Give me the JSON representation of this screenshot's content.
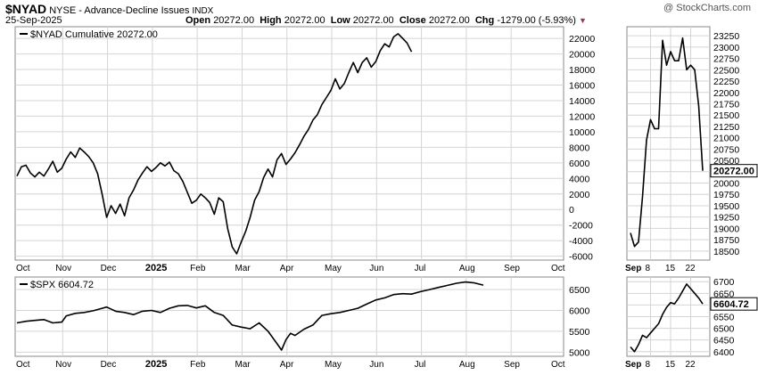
{
  "header": {
    "symbol": "$NYAD",
    "description": "NYSE - Advance-Decline Issues",
    "exchange": "INDX",
    "date": "25-Sep-2025",
    "open_label": "Open",
    "open": "20272.00",
    "high_label": "High",
    "high": "20272.00",
    "low_label": "Low",
    "low": "20272.00",
    "close_label": "Close",
    "close": "20272.00",
    "chg_label": "Chg",
    "chg": "-1279.00 (-5.93%)",
    "watermark": "@ StockCharts.com",
    "colors": {
      "down_marker": "#993366",
      "line": "#000000",
      "grid": "#d4d4d4"
    }
  },
  "chart_data": [
    {
      "type": "line",
      "name": "main-nyad",
      "legend": "$NYAD Cumulative 20272.00",
      "x_labels": [
        "Oct",
        "Nov",
        "Dec",
        "2025",
        "Feb",
        "Mar",
        "Apr",
        "May",
        "Jun",
        "Jul",
        "Aug",
        "Sep",
        "Oct"
      ],
      "ylim": [
        -6500,
        23500
      ],
      "y_ticks": [
        22000,
        20000,
        18000,
        16000,
        14000,
        12000,
        10000,
        8000,
        6000,
        4000,
        2000,
        0,
        -2000,
        -4000,
        -6000
      ],
      "y_tick_labels": [
        "22000",
        "20000",
        "18000",
        "16000",
        "14000",
        "12000",
        "10000",
        "8000",
        "6000",
        "4000",
        "2000",
        "0",
        "-2000",
        "-4000",
        "-6000"
      ],
      "x_month_index": [
        0,
        1,
        2,
        3,
        4,
        5,
        6,
        7,
        8,
        9,
        10,
        11
      ],
      "series": [
        {
          "values": [
            [
              0,
              4300
            ],
            [
              0.1,
              5500
            ],
            [
              0.2,
              5700
            ],
            [
              0.3,
              4700
            ],
            [
              0.4,
              4200
            ],
            [
              0.5,
              4800
            ],
            [
              0.6,
              4300
            ],
            [
              0.7,
              5200
            ],
            [
              0.8,
              6200
            ],
            [
              0.9,
              4800
            ],
            [
              1,
              5300
            ],
            [
              1.1,
              6500
            ],
            [
              1.2,
              7400
            ],
            [
              1.3,
              6700
            ],
            [
              1.4,
              7900
            ],
            [
              1.5,
              7400
            ],
            [
              1.6,
              6800
            ],
            [
              1.7,
              6000
            ],
            [
              1.8,
              4600
            ],
            [
              1.9,
              2000
            ],
            [
              2,
              -1000
            ],
            [
              2.1,
              500
            ],
            [
              2.2,
              -500
            ],
            [
              2.3,
              700
            ],
            [
              2.4,
              -800
            ],
            [
              2.5,
              1500
            ],
            [
              2.6,
              2500
            ],
            [
              2.7,
              3800
            ],
            [
              2.8,
              4700
            ],
            [
              2.9,
              5500
            ],
            [
              3,
              4900
            ],
            [
              3.1,
              5400
            ],
            [
              3.2,
              6000
            ],
            [
              3.3,
              5600
            ],
            [
              3.4,
              6100
            ],
            [
              3.5,
              5000
            ],
            [
              3.6,
              4600
            ],
            [
              3.7,
              3600
            ],
            [
              3.8,
              2200
            ],
            [
              3.9,
              800
            ],
            [
              4,
              1200
            ],
            [
              4.1,
              2000
            ],
            [
              4.2,
              1500
            ],
            [
              4.3,
              900
            ],
            [
              4.4,
              -600
            ],
            [
              4.5,
              1500
            ],
            [
              4.6,
              1000
            ],
            [
              4.7,
              -2500
            ],
            [
              4.8,
              -4800
            ],
            [
              4.9,
              -5700
            ],
            [
              5,
              -4200
            ],
            [
              5.1,
              -2800
            ],
            [
              5.2,
              -1000
            ],
            [
              5.3,
              1200
            ],
            [
              5.4,
              2300
            ],
            [
              5.5,
              4100
            ],
            [
              5.6,
              5200
            ],
            [
              5.7,
              4200
            ],
            [
              5.8,
              6400
            ],
            [
              5.9,
              7200
            ],
            [
              6,
              5800
            ],
            [
              6.1,
              6500
            ],
            [
              6.2,
              7300
            ],
            [
              6.3,
              8300
            ],
            [
              6.4,
              9400
            ],
            [
              6.5,
              10300
            ],
            [
              6.6,
              11500
            ],
            [
              6.7,
              12200
            ],
            [
              6.8,
              13500
            ],
            [
              6.9,
              14400
            ],
            [
              7,
              15300
            ],
            [
              7.1,
              16800
            ],
            [
              7.2,
              15500
            ],
            [
              7.3,
              16200
            ],
            [
              7.4,
              17600
            ],
            [
              7.5,
              18900
            ],
            [
              7.6,
              17600
            ],
            [
              7.7,
              18900
            ],
            [
              7.8,
              19500
            ],
            [
              7.9,
              18300
            ],
            [
              8,
              19000
            ],
            [
              8.1,
              20400
            ],
            [
              8.2,
              21300
            ],
            [
              8.3,
              20900
            ],
            [
              8.4,
              22200
            ],
            [
              8.5,
              22600
            ],
            [
              8.6,
              22000
            ],
            [
              8.7,
              21400
            ],
            [
              8.8,
              20272
            ]
          ]
        }
      ]
    },
    {
      "type": "line",
      "name": "main-nyad-zoom",
      "x_labels": [
        "Sep",
        "8",
        "15",
        "22"
      ],
      "ylim": [
        18300,
        23450
      ],
      "y_ticks": [
        23250,
        23000,
        22750,
        22500,
        22250,
        22000,
        21750,
        21500,
        21250,
        21000,
        20750,
        20500,
        20250,
        20000,
        19750,
        19500,
        19250,
        19000,
        18750,
        18500
      ],
      "y_tick_labels": [
        "23250",
        "23000",
        "22750",
        "22500",
        "22250",
        "22000",
        "21750",
        "21500",
        "21250",
        "21000",
        "20750",
        "20500",
        "",
        "20000",
        "19750",
        "19500",
        "19250",
        "19000",
        "18750",
        "18500"
      ],
      "last_value": "20272.00",
      "series": [
        {
          "values": [
            [
              0,
              18900
            ],
            [
              1,
              18600
            ],
            [
              2,
              18700
            ],
            [
              3,
              19700
            ],
            [
              4,
              20950
            ],
            [
              5,
              21400
            ],
            [
              6,
              21200
            ],
            [
              7,
              21200
            ],
            [
              8,
              23150
            ],
            [
              9,
              22600
            ],
            [
              10,
              22900
            ],
            [
              11,
              22700
            ],
            [
              12,
              22700
            ],
            [
              13,
              23200
            ],
            [
              14,
              22500
            ],
            [
              15,
              22600
            ],
            [
              16,
              22500
            ],
            [
              17,
              21700
            ],
            [
              18,
              20272
            ]
          ]
        }
      ]
    },
    {
      "type": "line",
      "name": "lower-spx",
      "legend": "$SPX 6604.72",
      "x_labels": [
        "Oct",
        "Nov",
        "Dec",
        "2025",
        "Feb",
        "Mar",
        "Apr",
        "May",
        "Jun",
        "Jul",
        "Aug",
        "Sep",
        "Oct"
      ],
      "ylim": [
        4900,
        6800
      ],
      "y_ticks": [
        6500,
        6000,
        5500,
        5000
      ],
      "y_tick_labels": [
        "6500",
        "6000",
        "5500",
        "5000"
      ],
      "series": [
        {
          "values": [
            [
              0,
              5700
            ],
            [
              0.2,
              5740
            ],
            [
              0.4,
              5760
            ],
            [
              0.6,
              5780
            ],
            [
              0.8,
              5700
            ],
            [
              1,
              5720
            ],
            [
              1.1,
              5870
            ],
            [
              1.3,
              5930
            ],
            [
              1.5,
              5950
            ],
            [
              1.7,
              5990
            ],
            [
              1.9,
              6050
            ],
            [
              2,
              6080
            ],
            [
              2.2,
              5980
            ],
            [
              2.4,
              5950
            ],
            [
              2.6,
              5900
            ],
            [
              2.8,
              5980
            ],
            [
              3,
              6000
            ],
            [
              3.2,
              5950
            ],
            [
              3.4,
              6050
            ],
            [
              3.6,
              6110
            ],
            [
              3.8,
              6120
            ],
            [
              4,
              6060
            ],
            [
              4.2,
              6110
            ],
            [
              4.4,
              5950
            ],
            [
              4.6,
              5880
            ],
            [
              4.8,
              5650
            ],
            [
              5,
              5600
            ],
            [
              5.2,
              5560
            ],
            [
              5.4,
              5700
            ],
            [
              5.6,
              5500
            ],
            [
              5.8,
              5200
            ],
            [
              5.9,
              5050
            ],
            [
              6,
              5300
            ],
            [
              6.1,
              5450
            ],
            [
              6.2,
              5400
            ],
            [
              6.4,
              5550
            ],
            [
              6.6,
              5650
            ],
            [
              6.8,
              5880
            ],
            [
              7,
              5920
            ],
            [
              7.2,
              5950
            ],
            [
              7.4,
              6000
            ],
            [
              7.6,
              6050
            ],
            [
              7.8,
              6150
            ],
            [
              8,
              6250
            ],
            [
              8.2,
              6300
            ],
            [
              8.4,
              6380
            ],
            [
              8.6,
              6400
            ],
            [
              8.8,
              6390
            ],
            [
              9,
              6450
            ],
            [
              9.2,
              6500
            ],
            [
              9.4,
              6550
            ],
            [
              9.6,
              6600
            ],
            [
              9.8,
              6650
            ],
            [
              10,
              6680
            ],
            [
              10.2,
              6660
            ],
            [
              10.4,
              6604.72
            ]
          ]
        }
      ]
    },
    {
      "type": "line",
      "name": "lower-spx-zoom",
      "x_labels": [
        "Sep",
        "8",
        "15",
        "22"
      ],
      "ylim": [
        6380,
        6720
      ],
      "y_ticks": [
        6700,
        6650,
        6600,
        6550,
        6500,
        6450,
        6400
      ],
      "y_tick_labels": [
        "6700",
        "6650",
        "",
        "6550",
        "6500",
        "6450",
        "6400"
      ],
      "last_value": "6604.72",
      "series": [
        {
          "values": [
            [
              0,
              6420
            ],
            [
              1,
              6400
            ],
            [
              2,
              6430
            ],
            [
              3,
              6470
            ],
            [
              4,
              6460
            ],
            [
              5,
              6480
            ],
            [
              6,
              6500
            ],
            [
              7,
              6520
            ],
            [
              8,
              6560
            ],
            [
              9,
              6590
            ],
            [
              10,
              6610
            ],
            [
              11,
              6605
            ],
            [
              12,
              6630
            ],
            [
              13,
              6660
            ],
            [
              14,
              6690
            ],
            [
              15,
              6670
            ],
            [
              16,
              6650
            ],
            [
              17,
              6630
            ],
            [
              18,
              6604.72
            ]
          ]
        }
      ]
    }
  ]
}
